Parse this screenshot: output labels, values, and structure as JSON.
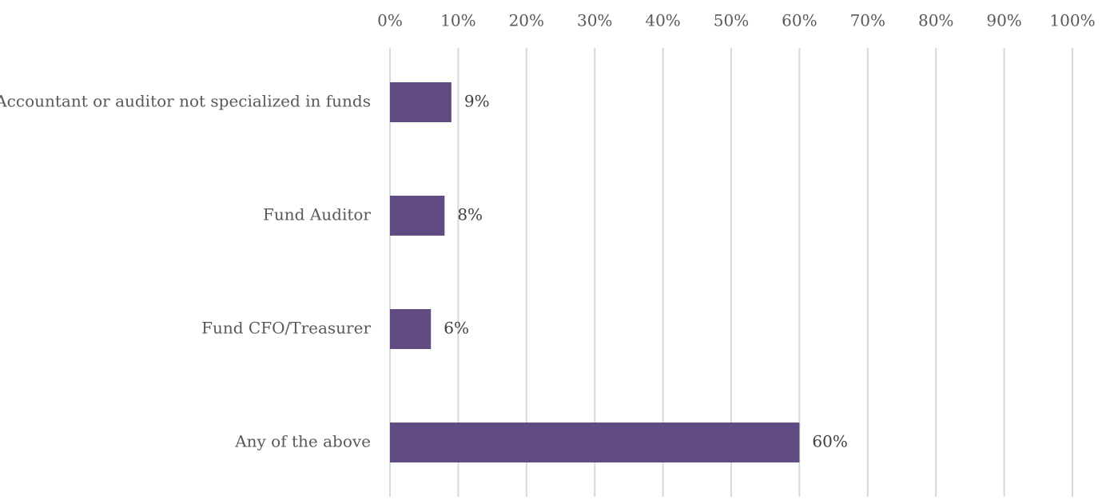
{
  "chart_data": {
    "type": "bar",
    "orientation": "horizontal",
    "categories": [
      "Accountant or auditor not specialized in funds",
      "Fund Auditor",
      "Fund CFO/Treasurer",
      "Any of the above"
    ],
    "values": [
      9,
      8,
      6,
      60
    ],
    "data_labels": [
      "9%",
      "8%",
      "6%",
      "60%"
    ],
    "xlim": [
      0,
      100
    ],
    "x_ticks": [
      0,
      10,
      20,
      30,
      40,
      50,
      60,
      70,
      80,
      90,
      100
    ],
    "x_tick_labels": [
      "0%",
      "10%",
      "20%",
      "30%",
      "40%",
      "50%",
      "60%",
      "70%",
      "80%",
      "90%",
      "100%"
    ],
    "x_axis_position": "top",
    "grid": true,
    "legend": "none",
    "title": "",
    "xlabel": "",
    "ylabel": "",
    "bar_color": "#604c82",
    "grid_color": "#d9d9d9"
  }
}
